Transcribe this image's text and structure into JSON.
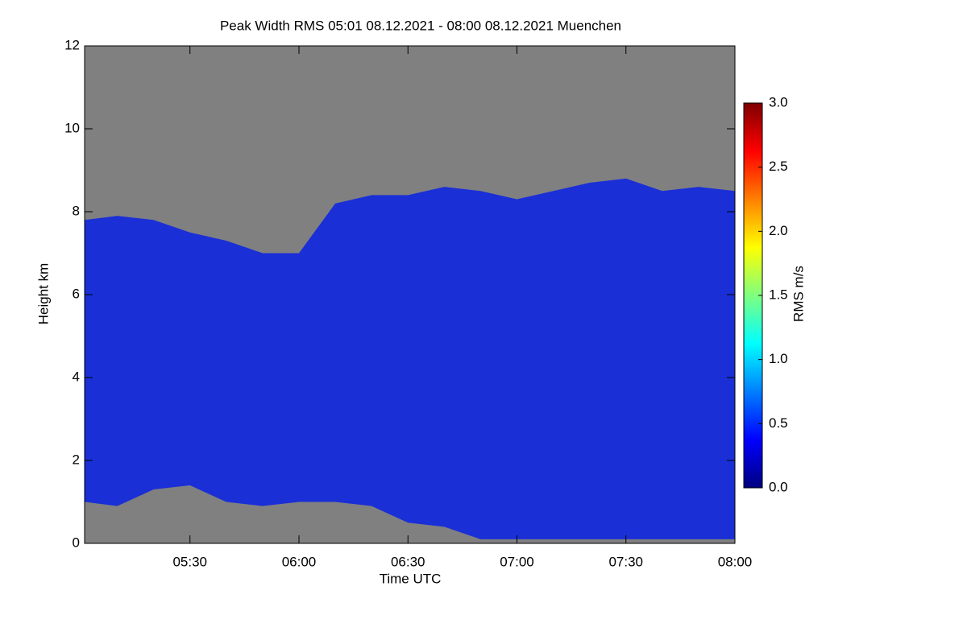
{
  "chart_data": {
    "type": "area_band",
    "title": "Peak Width RMS   05:01 08.12.2021 - 08:00 08.12.2021 Muenchen",
    "xlabel": "Time UTC",
    "ylabel": "Height km",
    "colorbar_label": "RMS m/s",
    "x": [
      301,
      310,
      320,
      330,
      340,
      350,
      360,
      370,
      380,
      390,
      400,
      410,
      420,
      430,
      440,
      450,
      460,
      470,
      480
    ],
    "top": [
      7.8,
      7.9,
      7.8,
      7.5,
      7.3,
      7.0,
      7.0,
      8.2,
      8.4,
      8.4,
      8.6,
      8.5,
      8.3,
      8.5,
      8.7,
      8.8,
      8.5,
      8.6,
      8.5
    ],
    "base": [
      1.0,
      0.9,
      1.3,
      1.4,
      1.0,
      0.9,
      1.0,
      1.0,
      0.9,
      0.5,
      0.4,
      0.1,
      0.1,
      0.1,
      0.1,
      0.1,
      0.1,
      0.1,
      0.1
    ],
    "color": "#1a2fd6",
    "background": "#808080",
    "xlim": [
      301,
      480
    ],
    "xticks": [
      {
        "value": 330,
        "label": "05:30"
      },
      {
        "value": 360,
        "label": "06:00"
      },
      {
        "value": 390,
        "label": "06:30"
      },
      {
        "value": 420,
        "label": "07:00"
      },
      {
        "value": 450,
        "label": "07:30"
      },
      {
        "value": 480,
        "label": "08:00"
      }
    ],
    "ylim": [
      0,
      12
    ],
    "yticks": [
      0,
      2,
      4,
      6,
      8,
      10,
      12
    ],
    "zlim": [
      0,
      3
    ],
    "zticks": [
      {
        "value": 0,
        "label": "0.0"
      },
      {
        "value": 0.5,
        "label": "0.5"
      },
      {
        "value": 1,
        "label": "1.0"
      },
      {
        "value": 1.5,
        "label": "1.5"
      },
      {
        "value": 2,
        "label": "2.0"
      },
      {
        "value": 2.5,
        "label": "2.5"
      },
      {
        "value": 3,
        "label": "3.0"
      }
    ],
    "colormap": [
      "#00007f",
      "#0000ff",
      "#007fff",
      "#00ffff",
      "#7fff7f",
      "#ffff00",
      "#ff7f00",
      "#ff0000",
      "#7f0000"
    ]
  }
}
